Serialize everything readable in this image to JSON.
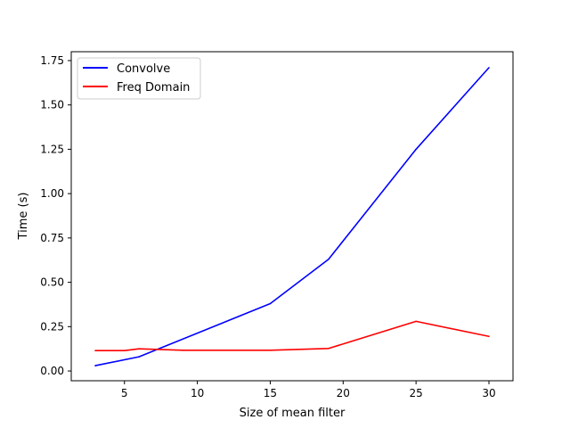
{
  "chart_data": {
    "type": "line",
    "title": "",
    "xlabel": "Size of mean filter",
    "ylabel": "Time (s)",
    "xlim": [
      1.35,
      31.65
    ],
    "ylim": [
      -0.055,
      1.8
    ],
    "xticks": [
      5,
      10,
      15,
      20,
      25,
      30
    ],
    "xtick_labels": [
      "5",
      "10",
      "15",
      "20",
      "25",
      "30"
    ],
    "yticks": [
      0.0,
      0.25,
      0.5,
      0.75,
      1.0,
      1.25,
      1.5,
      1.75
    ],
    "ytick_labels": [
      "0.00",
      "0.25",
      "0.50",
      "0.75",
      "1.00",
      "1.25",
      "1.50",
      "1.75"
    ],
    "grid": false,
    "legend_position": "upper-left",
    "series": [
      {
        "name": "Convolve",
        "color": "#0000ff",
        "x": [
          3,
          6,
          15,
          19,
          25,
          30
        ],
        "y": [
          0.03,
          0.08,
          0.38,
          0.63,
          1.25,
          1.71
        ]
      },
      {
        "name": "Freq Domain",
        "color": "#ff0000",
        "x": [
          3,
          5,
          6,
          9,
          15,
          19,
          25,
          30
        ],
        "y": [
          0.115,
          0.115,
          0.125,
          0.117,
          0.117,
          0.127,
          0.28,
          0.195
        ]
      }
    ]
  }
}
